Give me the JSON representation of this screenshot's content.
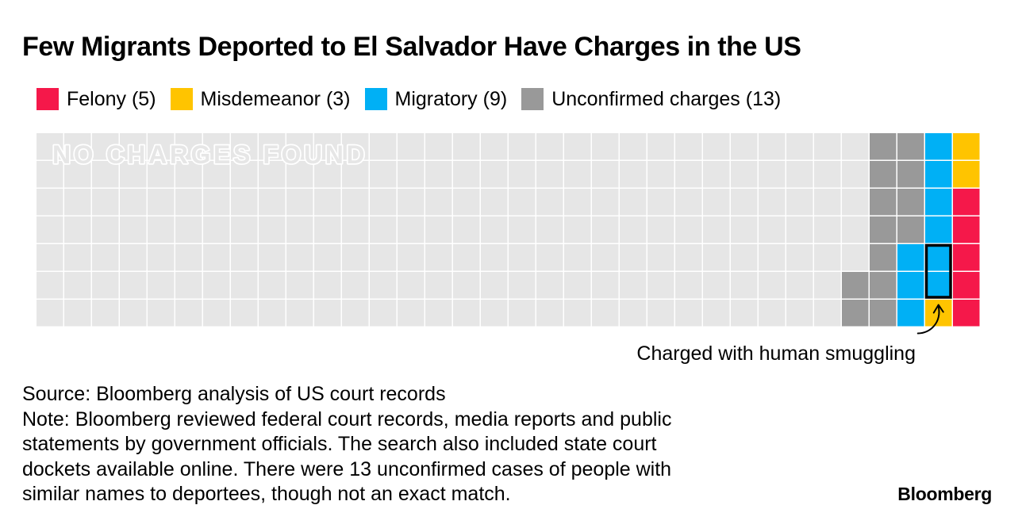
{
  "title": "Few Migrants Deported to El Salvador Have Charges in the US",
  "legend": [
    {
      "label": "Felony (5)",
      "color": "#f5184a"
    },
    {
      "label": "Misdemeanor (3)",
      "color": "#ffc400"
    },
    {
      "label": "Migratory (9)",
      "color": "#00b0f5"
    },
    {
      "label": "Unconfirmed charges (13)",
      "color": "#999999"
    }
  ],
  "chart_data": {
    "type": "waffle",
    "rows": 7,
    "columns": 34,
    "empty_color": "#e6e6e6",
    "categories": [
      {
        "name": "Felony",
        "count": 5,
        "color": "#f5184a"
      },
      {
        "name": "Misdemeanor",
        "count": 3,
        "color": "#ffc400"
      },
      {
        "name": "Migratory",
        "count": 9,
        "color": "#00b0f5"
      },
      {
        "name": "Unconfirmed charges",
        "count": 13,
        "color": "#999999"
      }
    ],
    "no_charges_label": "NO CHARGES FOUND",
    "annotation": {
      "text": "Charged with human smuggling",
      "highlight_category": "Migratory",
      "highlight_count": 2
    }
  },
  "footer": {
    "source": "Source: Bloomberg analysis of US court records",
    "note_lines": [
      "Note: Bloomberg reviewed federal court records, media reports and public",
      "statements by government officials. The search also included state court",
      "dockets available online. There were 13 unconfirmed cases of people with",
      "similar names to deportees, though not an exact match."
    ]
  },
  "brand": "Bloomberg"
}
